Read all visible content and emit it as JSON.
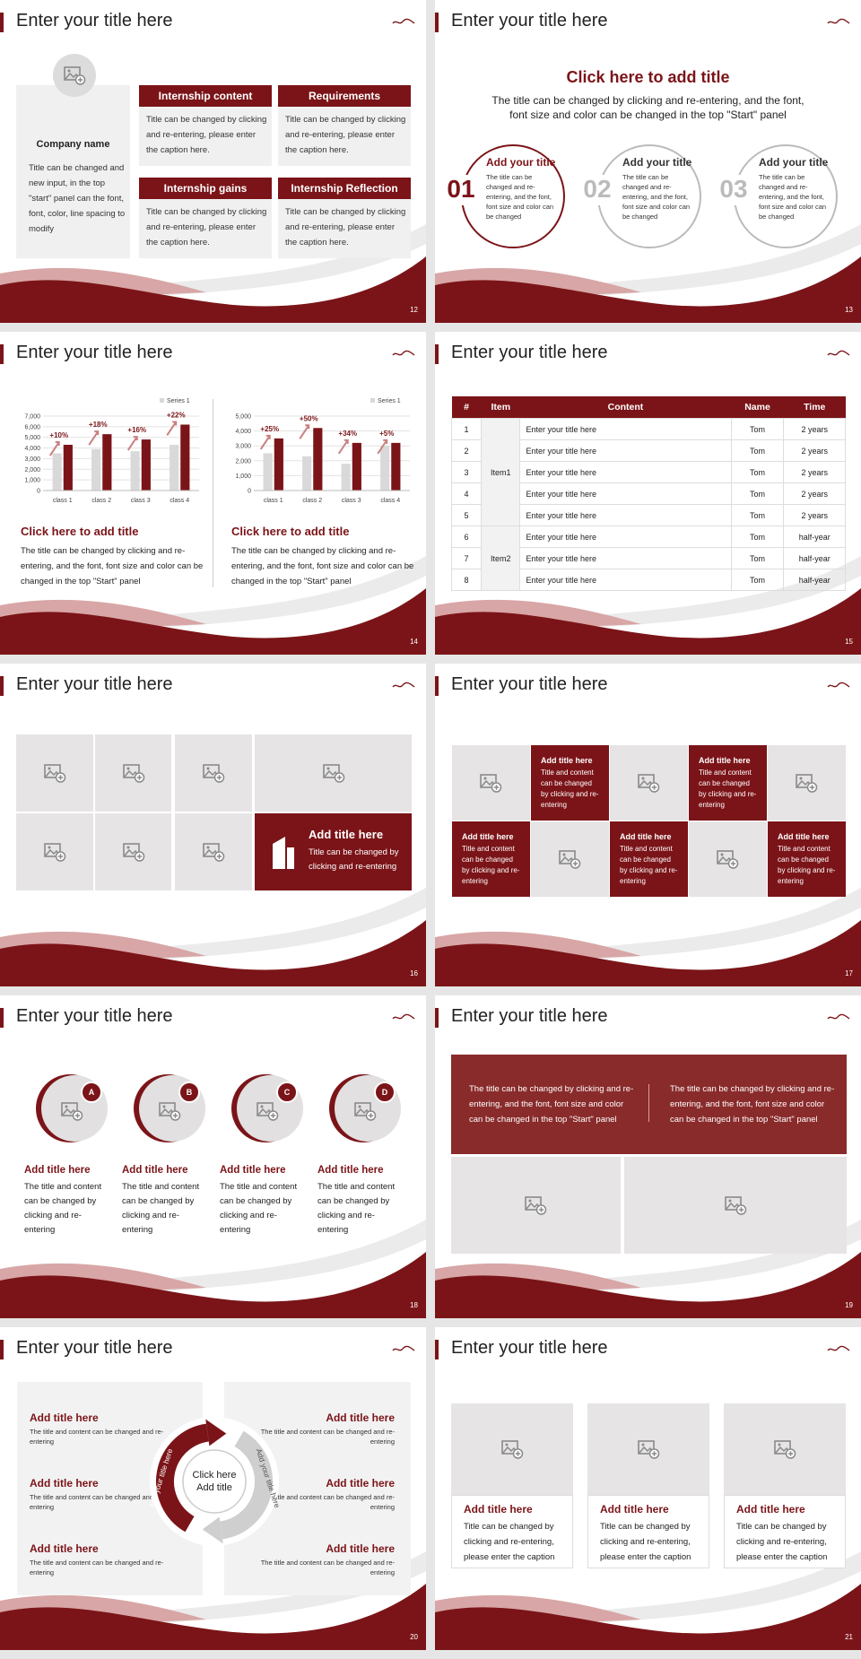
{
  "slides": [
    {
      "title": "Enter your title here",
      "page": "12",
      "company": {
        "name": "Company name",
        "text": "Title can be changed and new input, in the top \"start\" panel can the font, font, color, line spacing to modify"
      },
      "boxes": [
        {
          "heading": "Internship content",
          "text": "Title can be changed by clicking and re-entering, please enter the caption here."
        },
        {
          "heading": "Requirements",
          "text": "Title can be changed by clicking and re-entering, please enter the caption here."
        },
        {
          "heading": "Internship gains",
          "text": "Title can be changed by clicking and re-entering, please enter the caption here."
        },
        {
          "heading": "Internship Reflection",
          "text": "Title can be changed by clicking and re-entering, please enter the caption here."
        }
      ]
    },
    {
      "title": "Enter your title here",
      "page": "13",
      "heading": "Click here to add title",
      "subtitle": "The title can be changed by clicking and re-entering, and the font, font size and color can be changed in the top \"Start\" panel",
      "circles": [
        {
          "number": "01",
          "title": "Add your title",
          "text": "The title can be changed and re-entering, and the font, font size and color can be changed"
        },
        {
          "number": "02",
          "title": "Add your title",
          "text": "The title can be changed and re-entering, and the font, font size and color can be changed"
        },
        {
          "number": "03",
          "title": "Add your title",
          "text": "The title can be changed and re-entering, and the font, font size and color can be changed"
        }
      ]
    },
    {
      "title": "Enter your title here",
      "page": "14",
      "panels": [
        {
          "chart": {
            "type": "bar",
            "categories": [
              "class 1",
              "class 2",
              "class 3",
              "class 4"
            ],
            "series": [
              {
                "name": "Series 1",
                "color": "#d9d9d9",
                "values": [
                  3500,
                  3900,
                  3700,
                  4300
                ]
              },
              {
                "color": "#7b1418",
                "values": [
                  4300,
                  5300,
                  4800,
                  6200
                ]
              }
            ],
            "annotations": [
              "+10%",
              "+18%",
              "+16%",
              "+22%"
            ],
            "ylim": [
              0,
              7000
            ],
            "yticks": [
              0,
              {
                "value": 1000,
                "label": "1,000"
              },
              {
                "value": 2000,
                "label": "2,000"
              },
              {
                "value": 3000,
                "label": "3,000"
              },
              {
                "value": 4000,
                "label": "4,000"
              },
              {
                "value": 5000,
                "label": "5,000"
              },
              {
                "value": 6000,
                "label": "6,000"
              },
              {
                "value": 7000,
                "label": "7,000"
              }
            ],
            "grid": true
          },
          "heading": "Click here to add title",
          "text": "The title can be changed by clicking and re-entering, and the font, font size and color can be changed in the top \"Start\" panel"
        },
        {
          "chart": {
            "type": "bar",
            "categories": [
              "class 1",
              "class 2",
              "class 3",
              "class 4"
            ],
            "series": [
              {
                "name": "Series 1",
                "color": "#d9d9d9",
                "values": [
                  2500,
                  2300,
                  1800,
                  3000
                ]
              },
              {
                "color": "#7b1418",
                "values": [
                  3500,
                  4200,
                  3200,
                  3200
                ]
              }
            ],
            "annotations": [
              "+25%",
              "+50%",
              "+34%",
              "+5%"
            ],
            "ylim": [
              0,
              5000
            ],
            "yticks": [
              0,
              {
                "value": 1000,
                "label": "1,000"
              },
              {
                "value": 2000,
                "label": "2,000"
              },
              {
                "value": 3000,
                "label": "3,000"
              },
              {
                "value": 4000,
                "label": "4,000"
              },
              {
                "value": 5000,
                "label": "5,000"
              }
            ],
            "grid": true
          },
          "heading": "Click here to add title",
          "text": "The title can be changed by clicking and re-entering, and the font, font size and color can be changed in the top \"Start\" panel"
        }
      ]
    },
    {
      "title": "Enter your title here",
      "page": "15",
      "table": {
        "header": [
          "#",
          "Item",
          "Content",
          "Name",
          "Time"
        ],
        "groups": [
          {
            "item": "Item1",
            "rows": [
              [
                "1",
                "Enter your title here",
                "Tom",
                "2 years"
              ],
              [
                "2",
                "Enter your title here",
                "Tom",
                "2 years"
              ],
              [
                "3",
                "Enter your title here",
                "Tom",
                "2 years"
              ],
              [
                "4",
                "Enter your title here",
                "Tom",
                "2 years"
              ],
              [
                "5",
                "Enter your title here",
                "Tom",
                "2 years"
              ]
            ]
          },
          {
            "item": "Item2",
            "rows": [
              [
                "6",
                "Enter your title here",
                "Tom",
                "half-year"
              ],
              [
                "7",
                "Enter your title here",
                "Tom",
                "half-year"
              ],
              [
                "8",
                "Enter your title here",
                "Tom",
                "half-year"
              ]
            ]
          }
        ]
      }
    },
    {
      "title": "Enter your title here",
      "page": "16",
      "feature": {
        "title": "Add title here",
        "text": "Title can be changed by clicking and re-entering"
      }
    },
    {
      "title": "Enter your title here",
      "page": "17",
      "cells": [
        {
          "title": "Add title here",
          "text": "Title and content can be changed by clicking and re-entering"
        },
        {
          "title": "Add title here",
          "text": "Title and content can be changed by clicking and re-entering"
        },
        {
          "title": "Add title here",
          "text": "Title and content can be changed by clicking and re-entering"
        },
        {
          "title": "Add title here",
          "text": "Title and content can be changed by clicking and re-entering"
        },
        {
          "title": "Add title here",
          "text": "Title and content can be changed by clicking and re-entering"
        }
      ]
    },
    {
      "title": "Enter your title here",
      "page": "18",
      "items": [
        {
          "letter": "A",
          "title": "Add title here",
          "text": "The title and content can be changed by clicking and re-entering"
        },
        {
          "letter": "B",
          "title": "Add title here",
          "text": "The title and content can be changed by clicking and re-entering"
        },
        {
          "letter": "C",
          "title": "Add title here",
          "text": "The title and content can be changed by clicking and re-entering"
        },
        {
          "letter": "D",
          "title": "Add title here",
          "text": "The title and content can be changed by clicking and re-entering"
        }
      ]
    },
    {
      "title": "Enter your title here",
      "page": "19",
      "texts": [
        "The title can be changed by clicking and re-entering, and the font, font size and color can be changed in the top \"Start\" panel",
        "The title can be changed by clicking and re-entering, and the font, font size and color can be changed in the top \"Start\" panel"
      ]
    },
    {
      "title": "Enter your title here",
      "page": "20",
      "center": "Click here Add title",
      "arrows": [
        "Add your title here",
        "Add your title here"
      ],
      "items": [
        {
          "title": "Add title here",
          "text": "The title and content can be changed and re-entering"
        },
        {
          "title": "Add title here",
          "text": "The title and content can be changed and re-entering"
        },
        {
          "title": "Add title here",
          "text": "The title and content can be changed and re-entering"
        },
        {
          "title": "Add title here",
          "text": "The title and content can be changed and re-entering"
        },
        {
          "title": "Add title here",
          "text": "The title and content can be changed and re-entering"
        },
        {
          "title": "Add title here",
          "text": "The title and content can be changed and re-entering"
        }
      ]
    },
    {
      "title": "Enter your title here",
      "page": "21",
      "cards": [
        {
          "title": "Add title here",
          "text": "Title can be changed by clicking and re-entering, please enter the caption"
        },
        {
          "title": "Add title here",
          "text": "Title can be changed by clicking and re-entering, please enter the caption"
        },
        {
          "title": "Add title here",
          "text": "Title can be changed by clicking and re-entering, please enter the caption"
        }
      ]
    }
  ]
}
